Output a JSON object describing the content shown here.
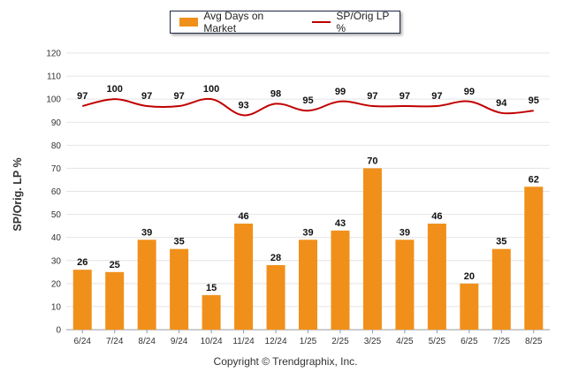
{
  "legend": {
    "bar_label": "Avg Days on Market",
    "line_label": "SP/Orig LP %"
  },
  "ylabel": "SP/Orig. LP %",
  "copyright": "Copyright © Trendgraphix, Inc.",
  "chart_data": {
    "type": "bar",
    "categories": [
      "6/24",
      "7/24",
      "8/24",
      "9/24",
      "10/24",
      "11/24",
      "12/24",
      "1/25",
      "2/25",
      "3/25",
      "4/25",
      "5/25",
      "6/25",
      "7/25",
      "8/25"
    ],
    "series": [
      {
        "name": "Avg Days on Market",
        "type": "bar",
        "color": "#f0901a",
        "values": [
          26,
          25,
          39,
          35,
          15,
          46,
          28,
          39,
          43,
          70,
          39,
          46,
          20,
          35,
          62
        ]
      },
      {
        "name": "SP/Orig LP %",
        "type": "line",
        "color": "#c00000",
        "values": [
          97,
          100,
          97,
          97,
          100,
          93,
          98,
          95,
          99,
          97,
          97,
          97,
          99,
          94,
          95
        ]
      }
    ],
    "ylabel": "SP/Orig. LP %",
    "ylim": [
      0,
      120
    ],
    "yticks": [
      0,
      10,
      20,
      30,
      40,
      50,
      60,
      70,
      80,
      90,
      100,
      110,
      120
    ],
    "grid": true,
    "legend": "top-center"
  }
}
